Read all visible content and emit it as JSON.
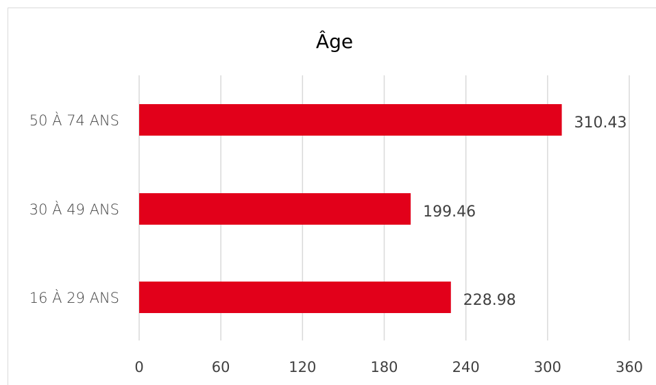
{
  "chart_data": {
    "type": "bar",
    "orientation": "horizontal",
    "title": "Âge",
    "xlabel": "",
    "ylabel": "",
    "categories": [
      "50 À 74 ANS",
      "30 À 49 ANS",
      "16 À 29 ANS"
    ],
    "values": [
      310.43,
      199.46,
      228.98
    ],
    "value_labels": [
      "310.43",
      "199.46",
      "228.98"
    ],
    "xlim": [
      0,
      360
    ],
    "x_ticks": [
      0,
      60,
      120,
      180,
      240,
      300,
      360
    ],
    "grid": "vertical",
    "legend": "none",
    "bar_color": "#e2001a"
  }
}
